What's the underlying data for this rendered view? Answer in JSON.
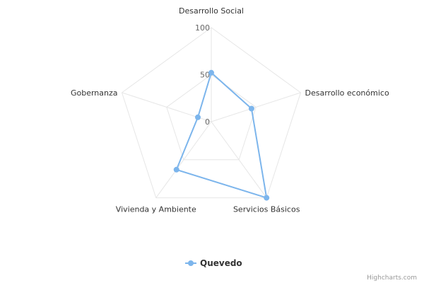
{
  "chart_data": {
    "type": "radar",
    "categories": [
      "Desarrollo Social",
      "Desarrollo económico",
      "Servicios Básicos",
      "Vivienda y Ambiente",
      "Gobernanza"
    ],
    "series": [
      {
        "name": "Quevedo",
        "values": [
          52,
          45,
          100,
          63,
          15
        ],
        "color": "#7cb5ec"
      }
    ],
    "ylim": [
      0,
      100
    ],
    "ticks": [
      "0",
      "50",
      "100"
    ],
    "grid": true,
    "legend_position": "bottom"
  },
  "credits": "Highcharts.com"
}
